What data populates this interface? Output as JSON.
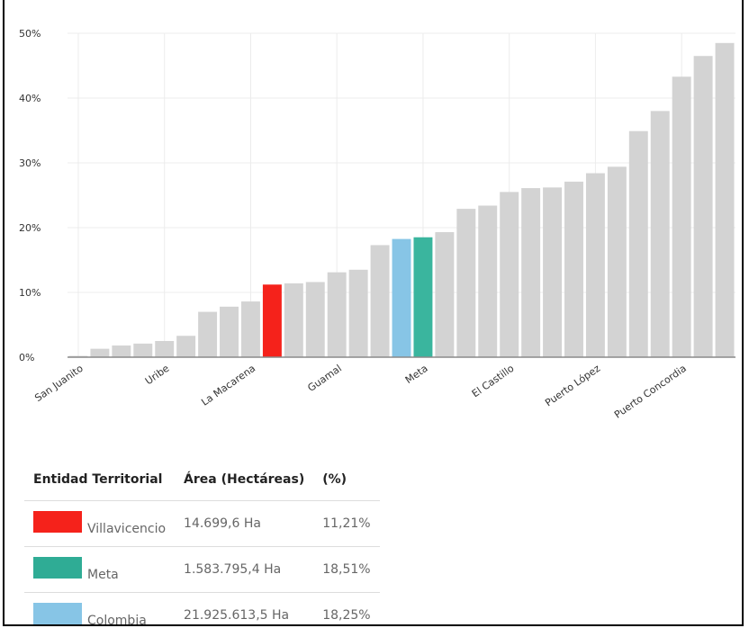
{
  "chart_data": {
    "type": "bar",
    "y_ticks": [
      "0%",
      "10%",
      "20%",
      "30%",
      "40%",
      "50%"
    ],
    "ylim": [
      0,
      50
    ],
    "grid": true,
    "x_labels": [
      "San Juanito",
      "Uribe",
      "La Macarena",
      "Guamal",
      "Meta",
      "El Castillo",
      "Puerto López",
      "Puerto Concordia"
    ],
    "values": [
      0.2,
      1.3,
      1.8,
      2.1,
      2.5,
      3.3,
      7.0,
      7.8,
      8.6,
      11.21,
      11.4,
      11.6,
      13.1,
      13.5,
      17.3,
      18.25,
      18.51,
      19.3,
      22.9,
      23.4,
      25.5,
      26.1,
      26.2,
      27.1,
      28.4,
      29.4,
      34.9,
      38.0,
      43.3,
      46.5,
      48.5
    ],
    "highlights": [
      {
        "index": 9,
        "color": "#f5221b"
      },
      {
        "index": 15,
        "color": "#87c5e6"
      },
      {
        "index": 16,
        "color": "#3ab59e"
      }
    ],
    "default_color": "#d3d3d3"
  },
  "legend_table": {
    "headers": [
      "Entidad Territorial",
      "Área (Hectáreas)",
      "(%)"
    ],
    "rows": [
      {
        "name": "Villavicencio",
        "area": "14.699,6 Ha",
        "pct": "11,21%",
        "color": "#f5221b"
      },
      {
        "name": "Meta",
        "area": "1.583.795,4 Ha",
        "pct": "18,51%",
        "color": "#2fac95"
      },
      {
        "name": "Colombia",
        "area": "21.925.613,5 Ha",
        "pct": "18,25%",
        "color": "#87c5e6"
      }
    ]
  }
}
